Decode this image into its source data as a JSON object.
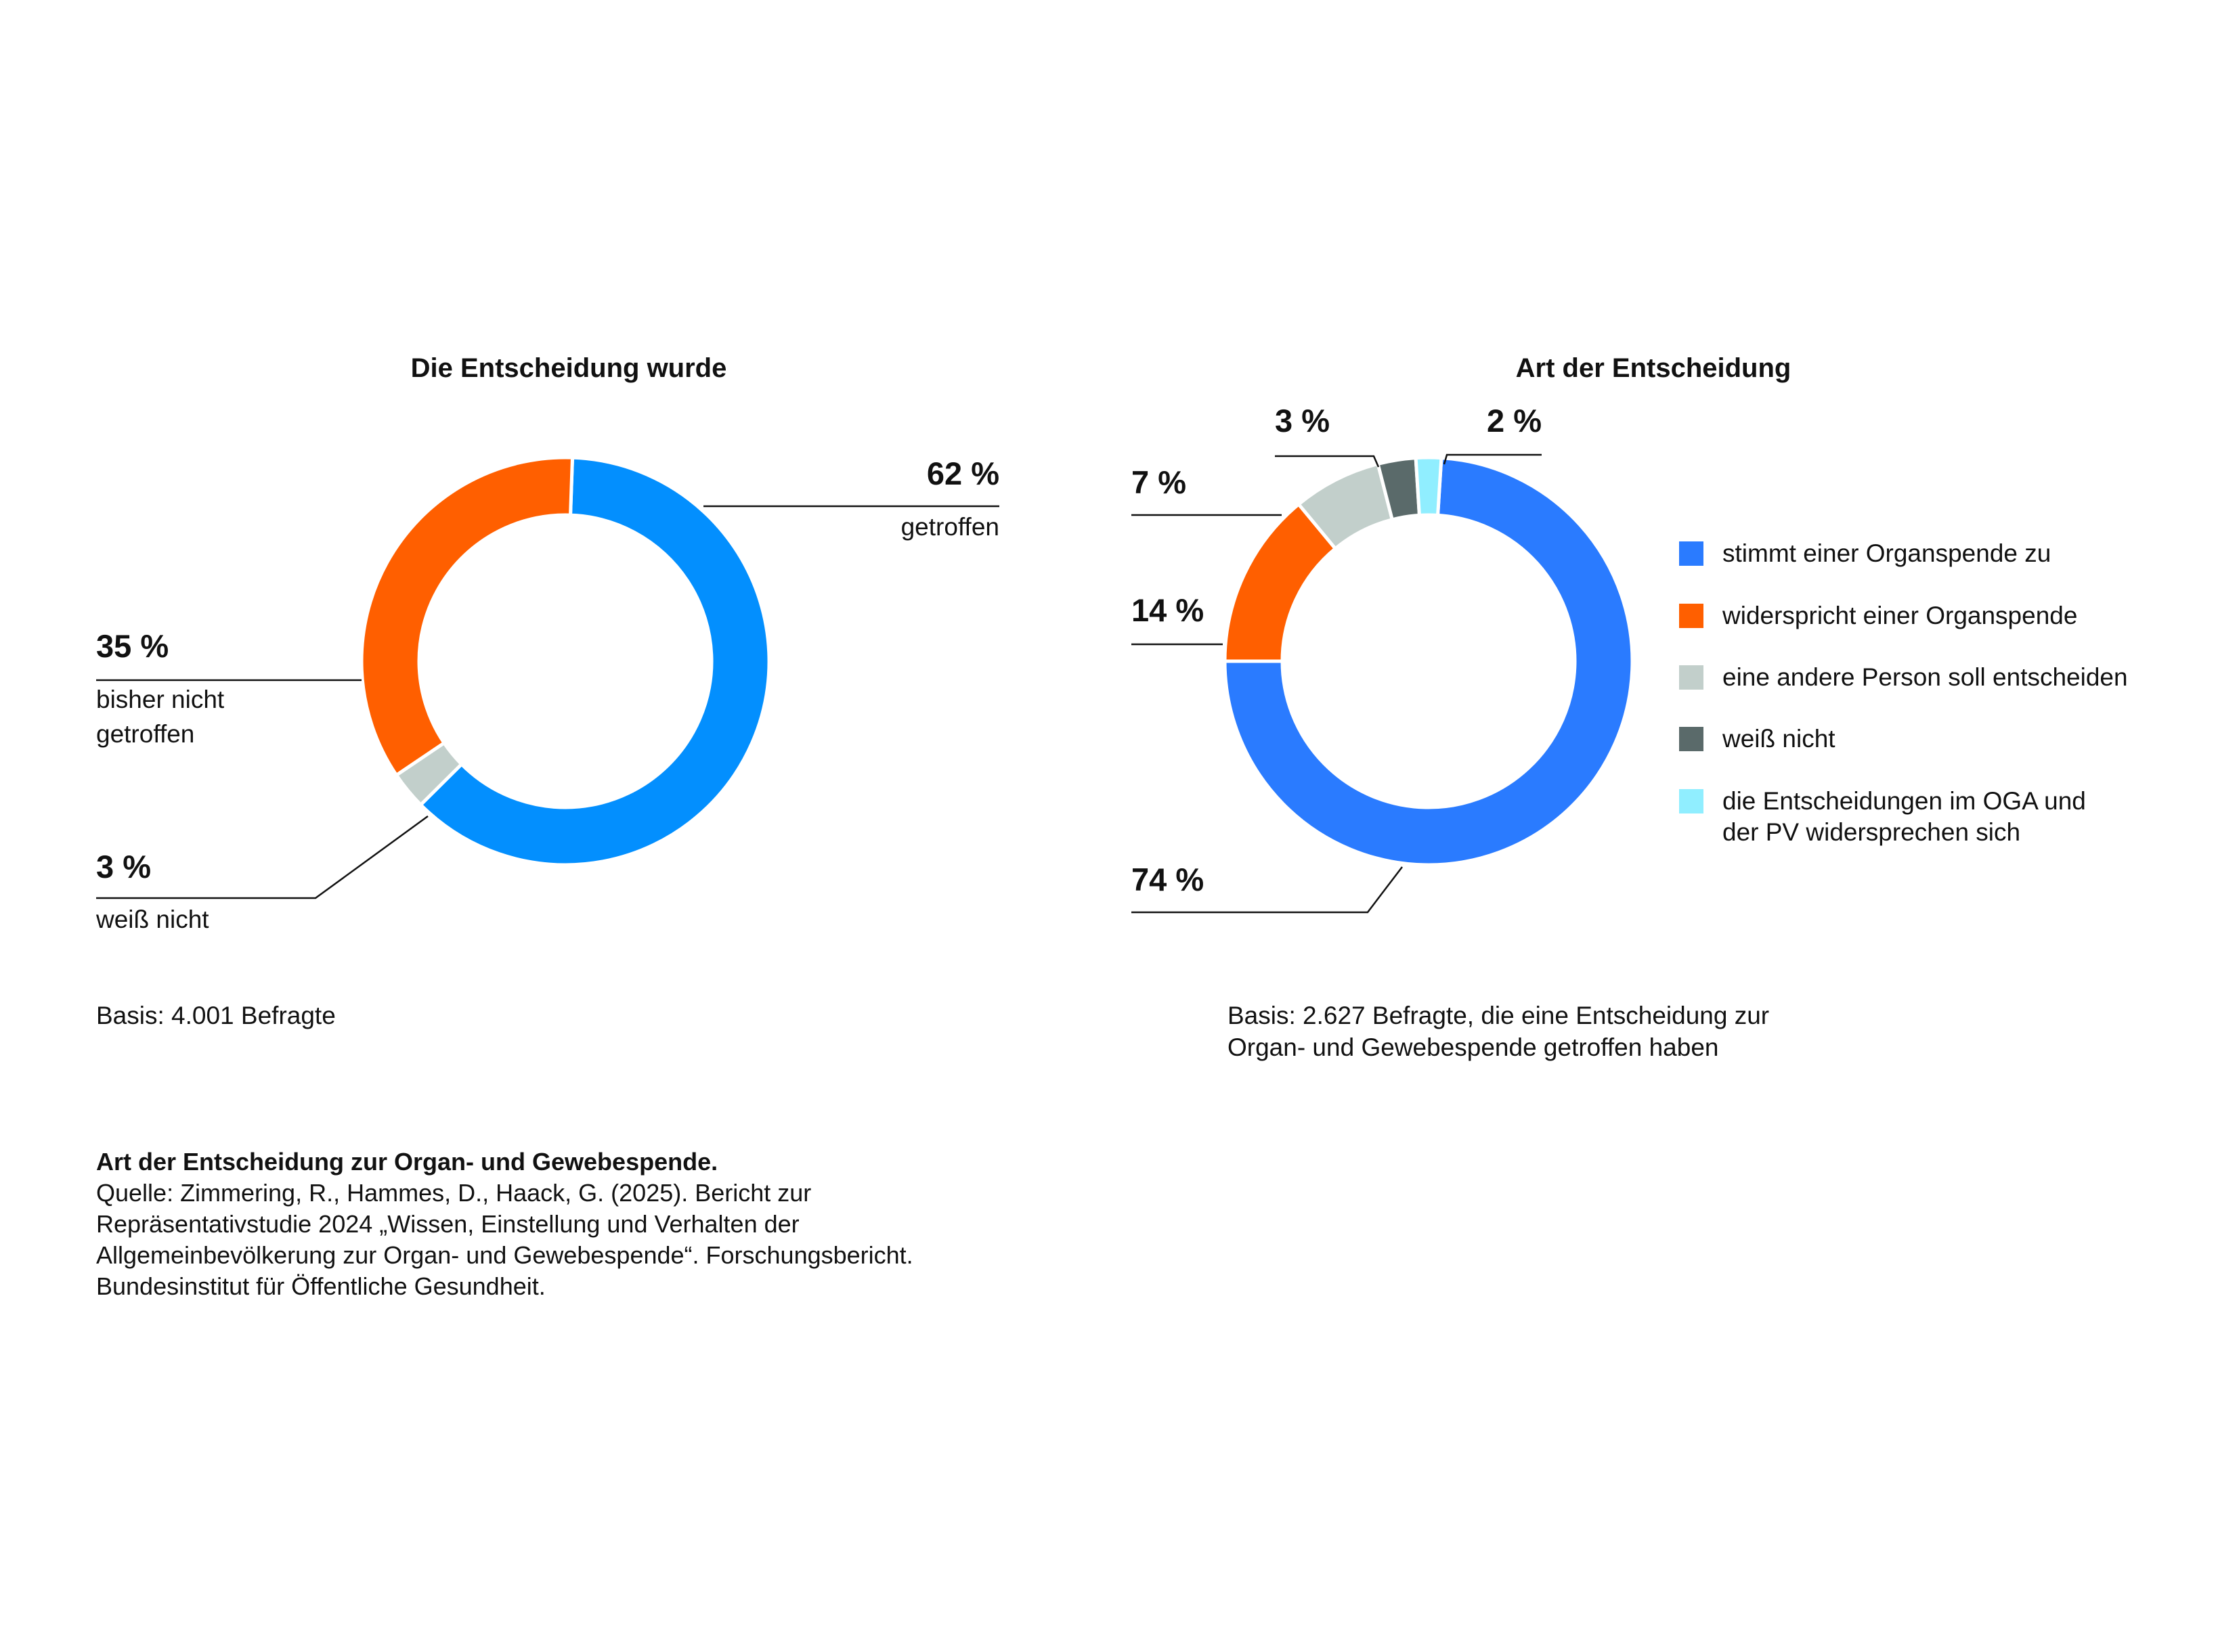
{
  "chart_data": [
    {
      "type": "pie",
      "title": "Die Entscheidung wurde",
      "donut": true,
      "slices": [
        {
          "label": "getroffen",
          "value": 62,
          "value_label": "62 %",
          "color": "#038ffe"
        },
        {
          "label": "weiß nicht",
          "value": 3,
          "value_label": "3 %",
          "color": "#c2cfcb"
        },
        {
          "label": "bisher nicht getroffen",
          "label_lines": [
            "bisher nicht",
            "getroffen"
          ],
          "value": 35,
          "value_label": "35 %",
          "color": "#ff5f00"
        }
      ],
      "note": "Basis: 4.001 Befragte"
    },
    {
      "type": "pie",
      "title": "Art der Entscheidung",
      "donut": true,
      "legend_position": "right",
      "slices": [
        {
          "label": "stimmt einer Organspende zu",
          "value": 74,
          "value_label": "74 %",
          "color": "#2a7bff"
        },
        {
          "label": "widerspricht einer Organspende",
          "value": 14,
          "value_label": "14 %",
          "color": "#ff5f00"
        },
        {
          "label": "eine andere Person soll entscheiden",
          "value": 7,
          "value_label": "7 %",
          "color": "#c2cfcb"
        },
        {
          "label": "weiß nicht",
          "value": 3,
          "value_label": "3 %",
          "color": "#5a6a6a"
        },
        {
          "label": "die Entscheidungen im OGA und der PV widersprechen sich",
          "label_lines": [
            "die Entscheidungen im OGA und",
            "der PV widersprechen sich"
          ],
          "value": 2,
          "value_label": "2 %",
          "color": "#90eeff"
        }
      ],
      "note_lines": [
        "Basis: 2.627 Befragte, die eine Entscheidung zur",
        "Organ- und Gewebespende getroffen haben"
      ]
    }
  ],
  "footer": {
    "heading": "Art der Entscheidung zur Organ- und Gewebespende.",
    "lines": [
      "Quelle: Zimmering, R., Hammes, D., Haack, G. (2025). Bericht zur",
      "Repräsentativstudie 2024 „Wissen, Einstellung und Verhalten der",
      "Allgemeinbevölkerung zur Organ- und Gewebespende“. Forschungsbericht.",
      "Bundesinstitut für Öffentliche Gesundheit."
    ]
  }
}
